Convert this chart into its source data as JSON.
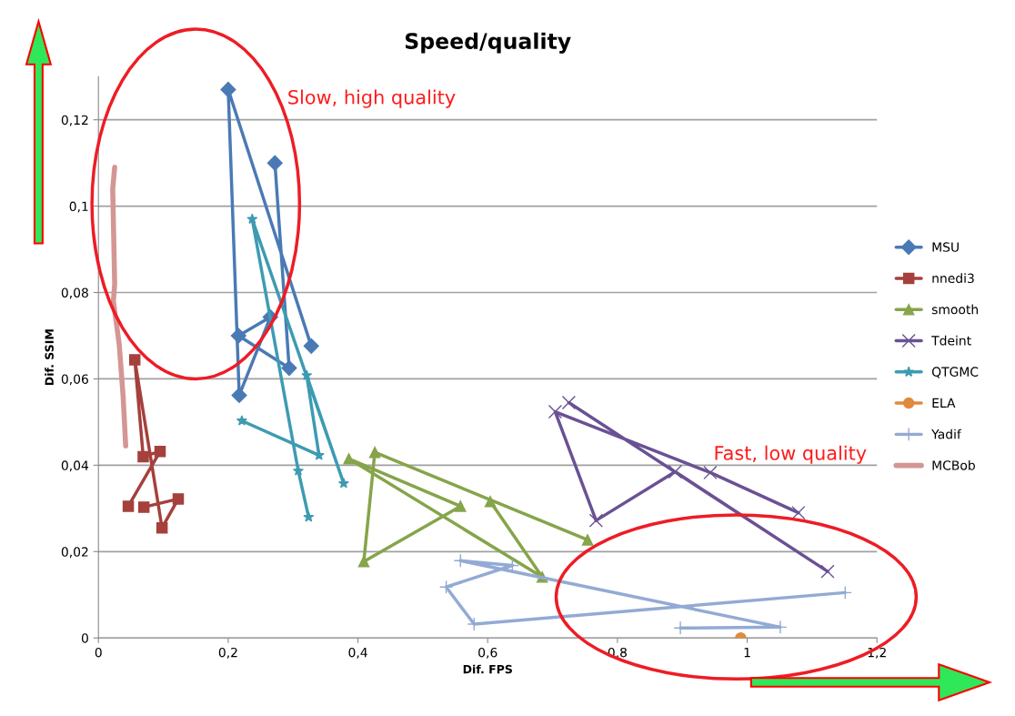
{
  "chart_data": {
    "type": "line",
    "title": "Speed/quality",
    "xlabel": "Dif. FPS",
    "ylabel": "Dif. SSIM",
    "xlim": [
      0,
      1.2
    ],
    "ylim": [
      0,
      0.13
    ],
    "xticks": [
      0,
      {
        "value": 0.2,
        "label": "0,2"
      },
      {
        "value": 0.4,
        "label": "0,4"
      },
      {
        "value": 0.6,
        "label": "0,6"
      },
      {
        "value": 0.8,
        "label": "0,8"
      },
      1,
      {
        "value": 1.2,
        "label": "1,2"
      }
    ],
    "yticks": [
      0,
      {
        "value": 0.02,
        "label": "0,02"
      },
      {
        "value": 0.04,
        "label": "0,04"
      },
      {
        "value": 0.06,
        "label": "0,06"
      },
      {
        "value": 0.08,
        "label": "0,08"
      },
      {
        "value": 0.1,
        "label": "0,1"
      },
      {
        "value": 0.12,
        "label": "0,12"
      }
    ],
    "grid": "y",
    "legend": "right",
    "line_style": "solid",
    "series": [
      {
        "name": "MSU",
        "color": "#4a7ab5",
        "marker": "diamond",
        "x": [
          0.328,
          0.2,
          0.217,
          0.265,
          0.216,
          0.294,
          0.272
        ],
        "values": [
          0.0676,
          0.127,
          0.0562,
          0.0743,
          0.07,
          0.0625,
          0.11
        ]
      },
      {
        "name": "nnedi3",
        "color": "#a5403c",
        "marker": "square",
        "x": [
          0.046,
          0.095,
          0.069,
          0.056,
          0.098,
          0.123,
          0.07
        ],
        "values": [
          0.0305,
          0.0432,
          0.042,
          0.0644,
          0.0255,
          0.0322,
          0.0303
        ]
      },
      {
        "name": "smooth",
        "color": "#86a44a",
        "marker": "triangle",
        "x": [
          0.604,
          0.684,
          0.386,
          0.558,
          0.409,
          0.426,
          0.754
        ],
        "values": [
          0.0316,
          0.0141,
          0.0415,
          0.0305,
          0.0177,
          0.043,
          0.0227
        ]
      },
      {
        "name": "Tdeint",
        "color": "#6a5193",
        "marker": "cross",
        "x": [
          1.079,
          0.943,
          0.704,
          0.767,
          0.889,
          1.124,
          0.725
        ],
        "values": [
          0.029,
          0.0383,
          0.0524,
          0.0272,
          0.0385,
          0.0154,
          0.0545
        ]
      },
      {
        "name": "QTGMC",
        "color": "#3d9bb2",
        "marker": "star",
        "x": [
          0.324,
          0.308,
          0.237,
          0.378,
          0.321,
          0.34,
          0.221
        ],
        "values": [
          0.028,
          0.0387,
          0.097,
          0.0358,
          0.0608,
          0.0423,
          0.0503
        ]
      },
      {
        "name": "ELA",
        "color": "#e08a3c",
        "marker": "circle",
        "x": [
          0.99
        ],
        "values": [
          0.0
        ]
      },
      {
        "name": "Yadif",
        "color": "#93aad4",
        "marker": "plus",
        "x": [
          0.897,
          1.051,
          0.558,
          0.638,
          0.536,
          0.579,
          1.151
        ],
        "values": [
          0.0023,
          0.0025,
          0.0179,
          0.0168,
          0.0118,
          0.0032,
          0.0105
        ]
      },
      {
        "name": "MCBob",
        "color": "#d49694",
        "marker": "none",
        "x": [
          0.025,
          0.022,
          0.025,
          0.023,
          0.032,
          0.038,
          0.042
        ],
        "values": [
          0.109,
          0.104,
          0.082,
          0.078,
          0.068,
          0.056,
          0.0445
        ]
      }
    ],
    "annotations": [
      "Slow, high quality",
      "Fast, low quality"
    ]
  }
}
